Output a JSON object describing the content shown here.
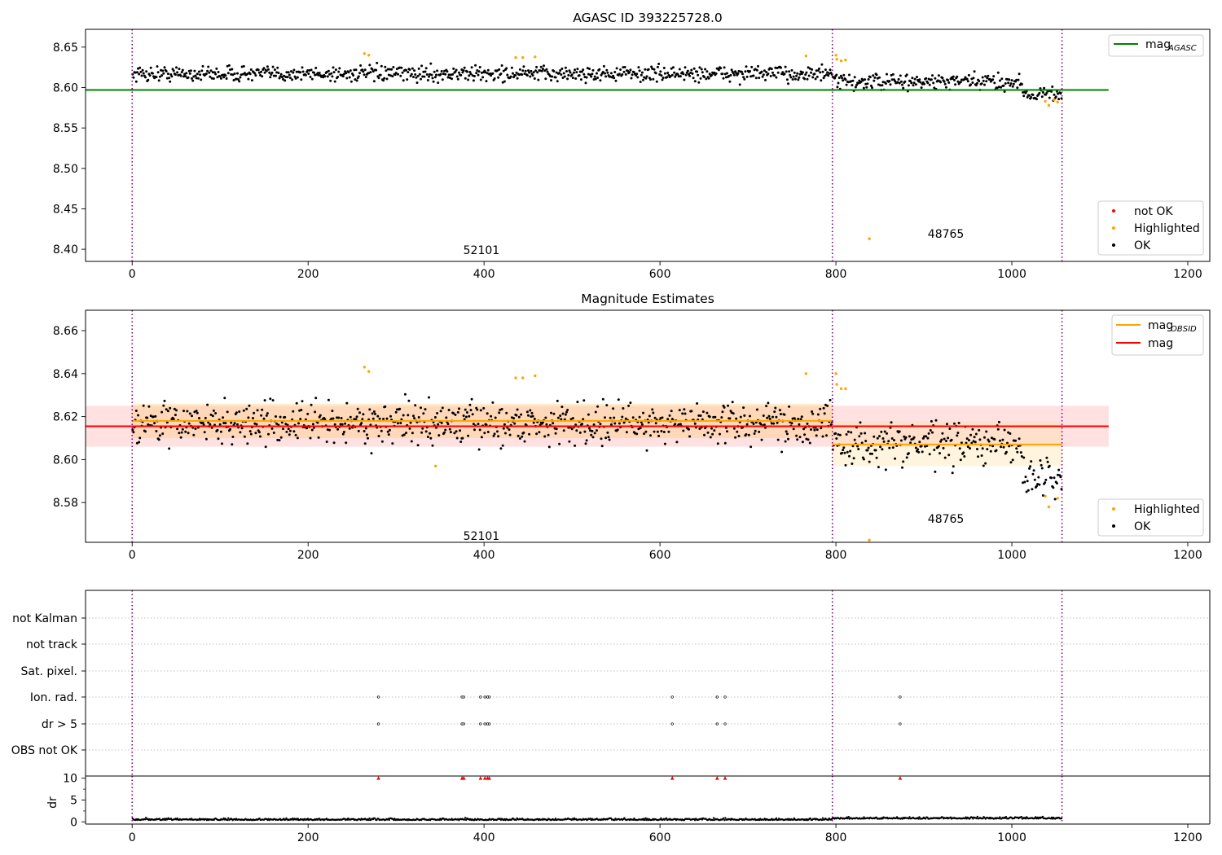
{
  "chart_data": [
    {
      "type": "scatter",
      "title": "AGASC ID 393225728.0",
      "xlim": [
        -53,
        1225
      ],
      "ylim": [
        8.385,
        8.672
      ],
      "x_ticks": [
        "0",
        "200",
        "400",
        "600",
        "800",
        "1000",
        "1200"
      ],
      "y_ticks": [
        "8.40",
        "8.45",
        "8.50",
        "8.55",
        "8.60",
        "8.65"
      ],
      "obs_boundaries": [
        0,
        796,
        1057
      ],
      "obs_labels": [
        {
          "text": "52101",
          "x": 397,
          "y": 8.399
        },
        {
          "text": "48765",
          "x": 925,
          "y": 8.419
        }
      ],
      "reference_line": {
        "name": "mag_AGASC",
        "y": 8.597,
        "x_range": [
          -53,
          1110
        ],
        "color": "#008000"
      },
      "legend_top": [
        {
          "label": "mag",
          "sub": "AGASC",
          "color": "#008000"
        }
      ],
      "legend_bottom": [
        {
          "label": "not OK",
          "color": "#ff0000"
        },
        {
          "label": "Highlighted",
          "color": "#ffa500"
        },
        {
          "label": "OK",
          "color": "#000000"
        }
      ],
      "highlighted_points": [
        [
          264,
          8.642
        ],
        [
          269,
          8.64
        ],
        [
          436,
          8.637
        ],
        [
          444,
          8.637
        ],
        [
          458,
          8.638
        ],
        [
          766,
          8.639
        ],
        [
          800,
          8.64
        ],
        [
          801,
          8.635
        ],
        [
          806,
          8.633
        ],
        [
          811,
          8.634
        ],
        [
          838,
          8.413
        ],
        [
          1038,
          8.583
        ],
        [
          1042,
          8.578
        ],
        [
          1048,
          8.585
        ],
        [
          1052,
          8.582
        ]
      ],
      "ok_segments": [
        {
          "x_start": 0,
          "x_end": 796,
          "mean": 8.617,
          "spread": 0.0085
        },
        {
          "x_start": 796,
          "x_end": 1012,
          "mean": 8.607,
          "spread": 0.009
        },
        {
          "x_start": 1012,
          "x_end": 1057,
          "mean": 8.592,
          "spread": 0.008
        }
      ],
      "n_ok_points": 1020
    },
    {
      "type": "scatter",
      "title": "Magnitude Estimates",
      "xlim": [
        -53,
        1225
      ],
      "ylim": [
        8.5615,
        8.6695
      ],
      "x_ticks": [
        "0",
        "200",
        "400",
        "600",
        "800",
        "1000",
        "1200"
      ],
      "y_ticks": [
        "8.58",
        "8.60",
        "8.62",
        "8.64",
        "8.66"
      ],
      "obs_boundaries": [
        0,
        796,
        1057
      ],
      "obs_labels": [
        {
          "text": "52101",
          "x": 397,
          "y": 8.5645
        },
        {
          "text": "48765",
          "x": 925,
          "y": 8.5725
        }
      ],
      "bands": [
        {
          "name": "mag",
          "x_range": [
            -53,
            1110
          ],
          "y_range": [
            8.606,
            8.625
          ],
          "color": "#ffb3b3",
          "opacity": 0.4
        },
        {
          "name": "mag_OBSID 52101",
          "x_range": [
            0,
            796
          ],
          "y_range": [
            8.61,
            8.626
          ],
          "color": "#ffc870",
          "opacity": 0.35
        },
        {
          "name": "mag_OBSID 48765",
          "x_range": [
            796,
            1057
          ],
          "y_range": [
            8.597,
            8.618
          ],
          "color": "#ffe0a0",
          "opacity": 0.35
        }
      ],
      "lines": [
        {
          "name": "mag",
          "y": 8.6155,
          "x_range": [
            -53,
            1110
          ],
          "color": "#ff0000"
        },
        {
          "name": "mag_OBSID 52101",
          "y": 8.618,
          "x_range": [
            0,
            796
          ],
          "color": "#ffa500"
        },
        {
          "name": "mag_OBSID 48765",
          "y": 8.607,
          "x_range": [
            796,
            1057
          ],
          "color": "#ffa500"
        }
      ],
      "legend_top": [
        {
          "label": "mag",
          "sub": "OBSID",
          "color": "#ffa500"
        },
        {
          "label": "mag",
          "sub": "",
          "color": "#ff0000"
        }
      ],
      "legend_bottom": [
        {
          "label": "Highlighted",
          "color": "#ffa500"
        },
        {
          "label": "OK",
          "color": "#000000"
        }
      ],
      "highlighted_points": [
        [
          264,
          8.643
        ],
        [
          269,
          8.641
        ],
        [
          345,
          8.597
        ],
        [
          436,
          8.638
        ],
        [
          444,
          8.638
        ],
        [
          458,
          8.639
        ],
        [
          766,
          8.64
        ],
        [
          800,
          8.64
        ],
        [
          801,
          8.635
        ],
        [
          806,
          8.633
        ],
        [
          811,
          8.633
        ],
        [
          838,
          8.5625
        ],
        [
          1038,
          8.583
        ],
        [
          1042,
          8.578
        ],
        [
          1052,
          8.582
        ]
      ],
      "ok_segments": [
        {
          "x_start": 0,
          "x_end": 796,
          "mean": 8.617,
          "spread": 0.0085
        },
        {
          "x_start": 796,
          "x_end": 1012,
          "mean": 8.607,
          "spread": 0.009
        },
        {
          "x_start": 1012,
          "x_end": 1057,
          "mean": 8.592,
          "spread": 0.008
        }
      ],
      "n_ok_points": 1020
    },
    {
      "type": "scatter",
      "title": "",
      "xlim": [
        -53,
        1225
      ],
      "x_ticks": [
        "0",
        "200",
        "400",
        "600",
        "800",
        "1000",
        "1200"
      ],
      "obs_boundaries": [
        0,
        796,
        1057
      ],
      "flag_rows": [
        "not Kalman",
        "not track",
        "Sat. pixel.",
        "Ion. rad.",
        "dr > 5",
        "OBS not OK"
      ],
      "flagged_points": {
        "Ion. rad.": [
          280,
          375,
          377,
          396,
          401,
          404,
          406,
          614,
          665,
          674,
          873
        ],
        "dr > 5": [
          280,
          375,
          377,
          396,
          401,
          404,
          406,
          614,
          665,
          674,
          873
        ]
      },
      "dr_axis": {
        "ylabel": "dr",
        "ylim": [
          -0.5,
          10.5
        ],
        "y_ticks": [
          "0",
          "5",
          "10"
        ],
        "clipped_points_x": [
          280,
          375,
          377,
          396,
          401,
          404,
          406,
          614,
          665,
          674,
          873
        ],
        "clipped_value": 10,
        "baseline": {
          "mean": 0.4,
          "spread": 0.3,
          "x_start": 0,
          "x_end": 1057
        },
        "n_points": 1040
      }
    }
  ]
}
